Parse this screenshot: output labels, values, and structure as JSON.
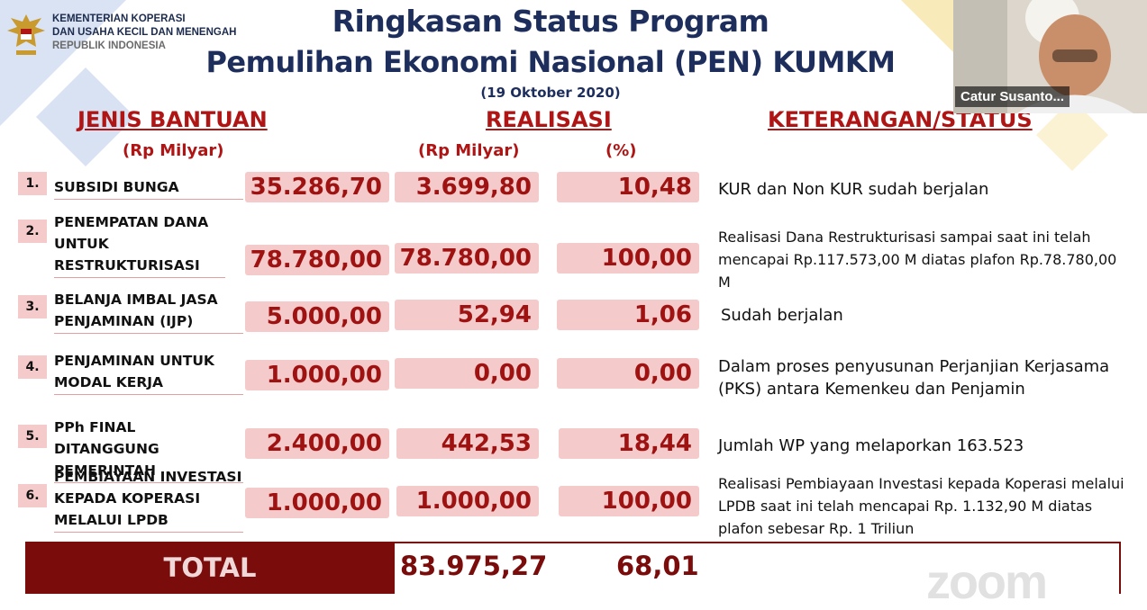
{
  "ministry": {
    "line1": "KEMENTERIAN KOPERASI",
    "line2": "DAN USAHA KECIL DAN MENENGAH",
    "line3": "REPUBLIK INDONESIA"
  },
  "title": {
    "line1": "Ringkasan Status Program",
    "line2": "Pemulihan Ekonomi Nasional (PEN) KUMKM",
    "date": "(19 Oktober 2020)"
  },
  "headers": {
    "jenis": "JENIS BANTUAN",
    "realisasi": "REALISASI",
    "keterangan": "KETERANGAN/STATUS",
    "unit_pagu": "(Rp Milyar)",
    "unit_realisasi": "(Rp Milyar)",
    "unit_pct": "(%)"
  },
  "rows": [
    {
      "num": "1.",
      "label": "SUBSIDI BUNGA",
      "pagu": "35.286,70",
      "realisasi": "3.699,80",
      "pct": "10,48",
      "note": "KUR dan Non KUR sudah berjalan"
    },
    {
      "num": "2.",
      "label": "PENEMPATAN DANA UNTUK RESTRUKTURISASI",
      "pagu": "78.780,00",
      "realisasi": "78.780,00",
      "pct": "100,00",
      "note": "Realisasi Dana Restrukturisasi sampai saat ini telah mencapai Rp.117.573,00 M diatas plafon Rp.78.780,00 M"
    },
    {
      "num": "3.",
      "label": "BELANJA IMBAL JASA PENJAMINAN (IJP)",
      "pagu": "5.000,00",
      "realisasi": "52,94",
      "pct": "1,06",
      "note": "Sudah berjalan"
    },
    {
      "num": "4.",
      "label": "PENJAMINAN UNTUK MODAL KERJA",
      "pagu": "1.000,00",
      "realisasi": "0,00",
      "pct": "0,00",
      "note": "Dalam proses penyusunan Perjanjian Kerjasama (PKS) antara Kemenkeu dan Penjamin"
    },
    {
      "num": "5.",
      "label": "PPh FINAL DITANGGUNG PEMERINTAH",
      "pagu": "2.400,00",
      "realisasi": "442,53",
      "pct": "18,44",
      "note": "Jumlah WP yang melaporkan 163.523"
    },
    {
      "num": "6.",
      "label": "PEMBIAYAAN INVESTASI KEPADA KOPERASI MELALUI LPDB",
      "pagu": "1.000,00",
      "realisasi": "1.000,00",
      "pct": "100,00",
      "note": "Realisasi Pembiayaan Investasi kepada Koperasi melalui LPDB saat ini telah mencapai Rp. 1.132,90 M diatas plafon sebesar Rp. 1 Triliun"
    }
  ],
  "total": {
    "label": "TOTAL",
    "realisasi": "83.975,27",
    "pct": "68,01"
  },
  "video": {
    "participant": "Catur Susanto..."
  },
  "watermark": "zoom",
  "colors": {
    "navy": "#1d2e5c",
    "red": "#b01515",
    "pink": "#f5caca",
    "maroon": "#7a0c0c"
  }
}
